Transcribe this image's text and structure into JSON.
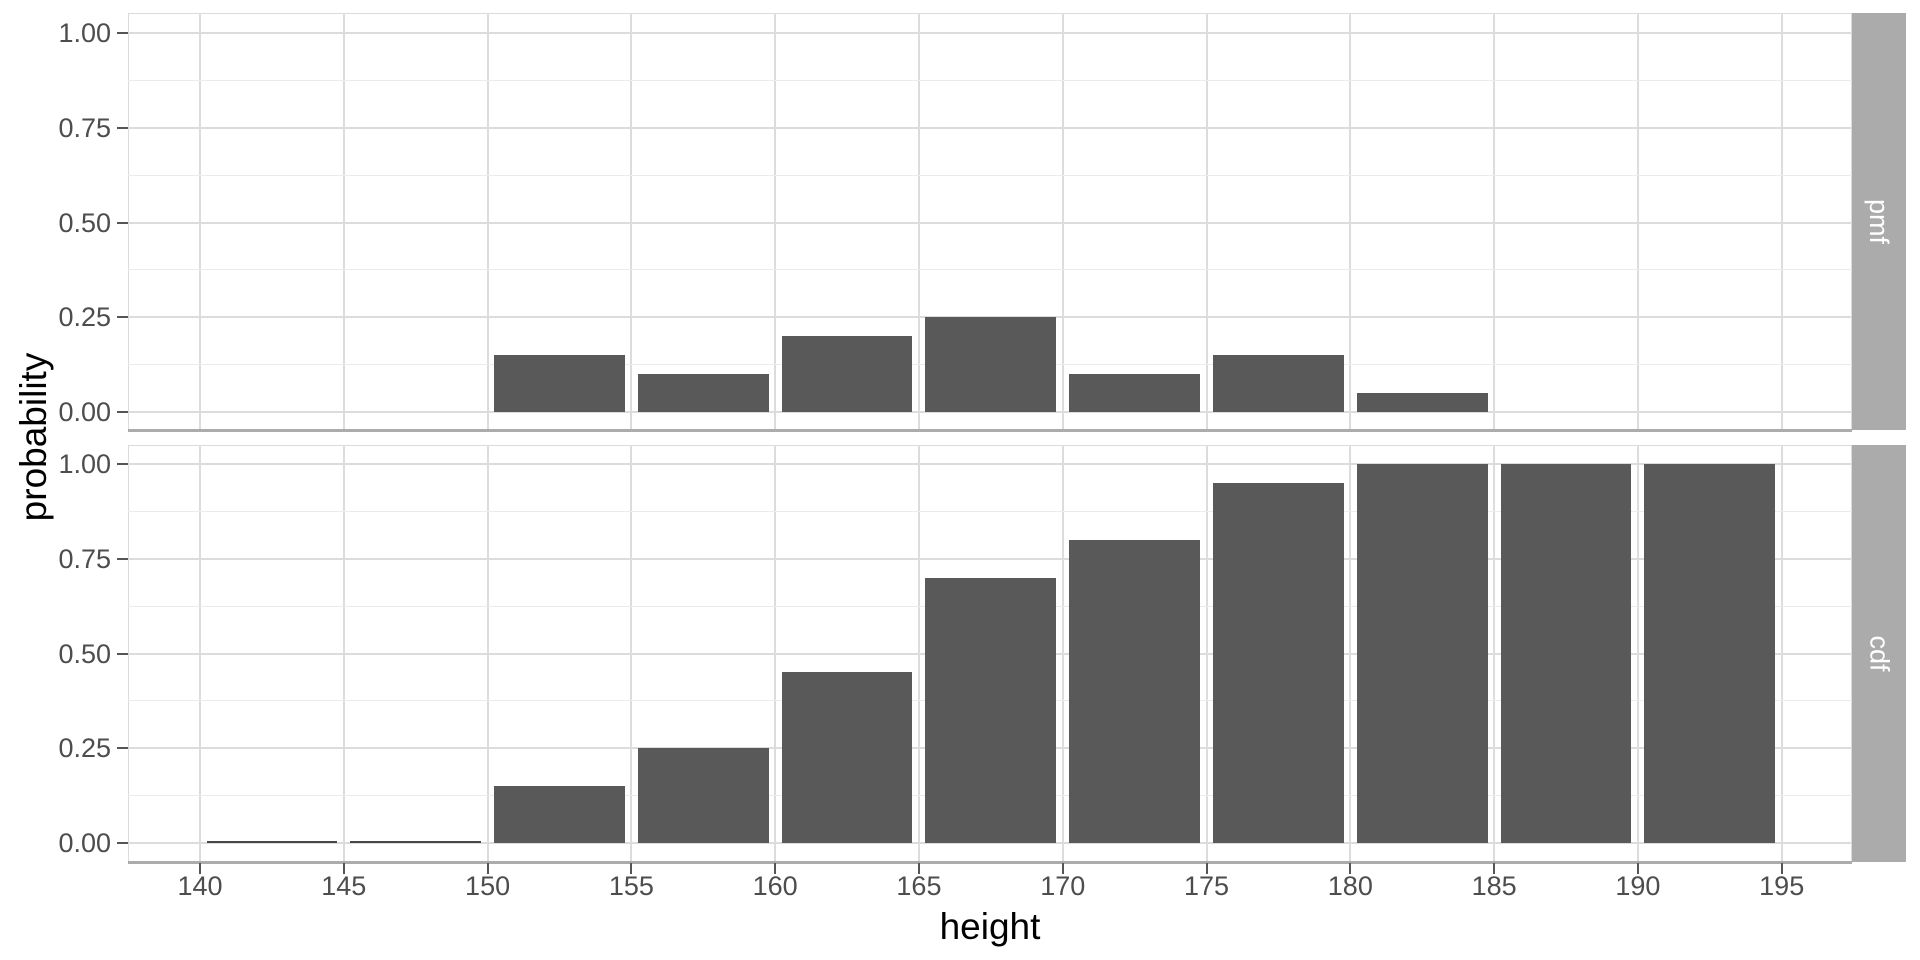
{
  "chart_data": {
    "type": "bar",
    "title": "",
    "xlabel": "height",
    "ylabel": "probability",
    "grid": true,
    "legend_position": "none",
    "xlim": [
      137.5,
      197.5
    ],
    "ylim": [
      0,
      1.05
    ],
    "bin_width": 5,
    "x_ticks": [
      140,
      145,
      150,
      155,
      160,
      165,
      170,
      175,
      180,
      185,
      190,
      195
    ],
    "y_tick_values": [
      0,
      0.25,
      0.5,
      0.75,
      1
    ],
    "y_tick_labels": [
      "0.00",
      "0.25",
      "0.50",
      "0.75",
      "1.00"
    ],
    "y_minor_values": [
      0.125,
      0.375,
      0.625,
      0.875
    ],
    "facets": [
      {
        "name": "pmf",
        "bin_starts": [
          150,
          155,
          160,
          165,
          170,
          175,
          180
        ],
        "values": [
          0.15,
          0.1,
          0.2,
          0.25,
          0.1,
          0.15,
          0.05
        ]
      },
      {
        "name": "cdf",
        "bin_starts": [
          140,
          145,
          150,
          155,
          160,
          165,
          170,
          175,
          180,
          185,
          190
        ],
        "values": [
          0.0,
          0.0,
          0.15,
          0.25,
          0.45,
          0.7,
          0.8,
          0.95,
          1.0,
          1.0,
          1.0
        ]
      }
    ]
  },
  "colors": {
    "bar_fill": "#595959",
    "zero_bar_line": "#474747",
    "strip_background": "#ABABAB",
    "strip_text": "#FFFFFF",
    "grid_major": "#DCDCDC",
    "grid_minor": "#EBEBEB",
    "panel_border": "#DBDBDB",
    "axis_line": "#ACACAC",
    "tick_mark": "#555555",
    "tick_label": "#4D4D4D",
    "axis_title": "#000000",
    "background": "#FFFFFF"
  }
}
